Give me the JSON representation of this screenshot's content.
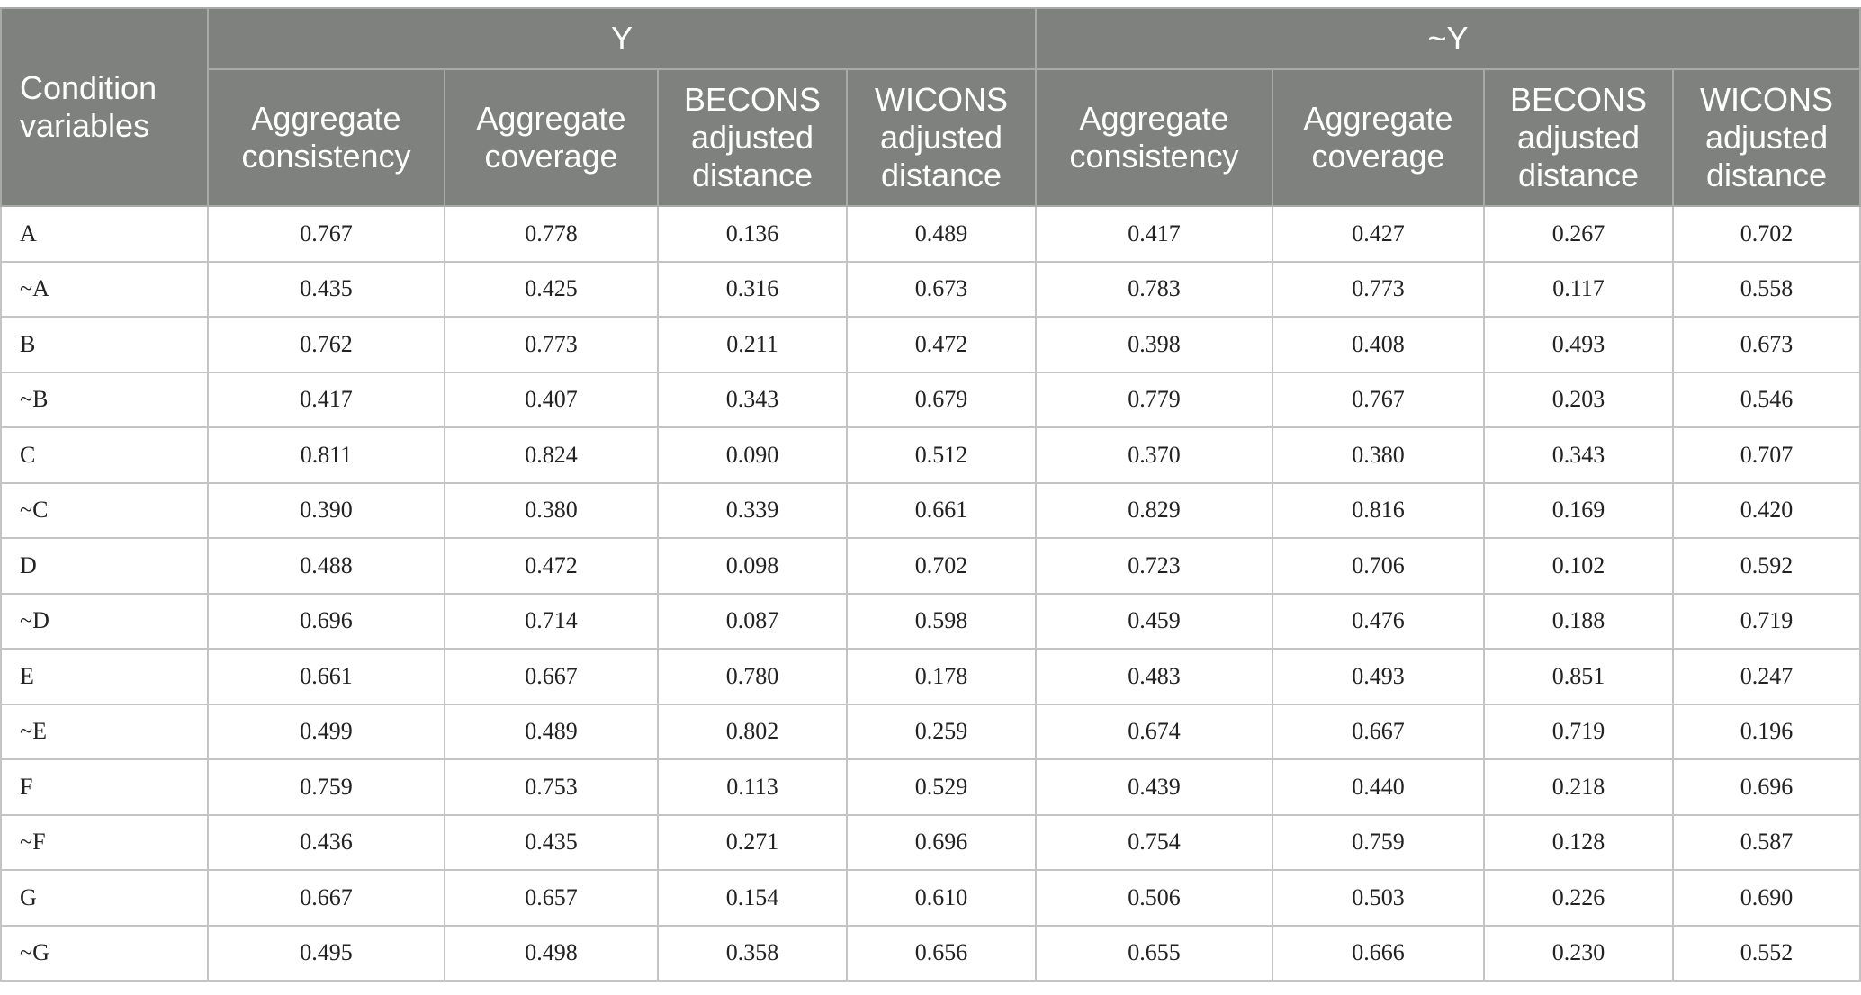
{
  "table": {
    "corner_header": [
      "Condition",
      "variables"
    ],
    "groups": [
      {
        "label": "Y",
        "span": 4
      },
      {
        "label": "~Y",
        "span": 4
      }
    ],
    "subheaders": [
      [
        "Aggregate",
        "consistency"
      ],
      [
        "Aggregate",
        "coverage"
      ],
      [
        "BECONS",
        "adjusted",
        "distance"
      ],
      [
        "WICONS",
        "adjusted",
        "distance"
      ],
      [
        "Aggregate",
        "consistency"
      ],
      [
        "Aggregate",
        "coverage"
      ],
      [
        "BECONS",
        "adjusted",
        "distance"
      ],
      [
        "WICONS",
        "adjusted",
        "distance"
      ]
    ],
    "rows": [
      {
        "label": "A",
        "values": [
          "0.767",
          "0.778",
          "0.136",
          "0.489",
          "0.417",
          "0.427",
          "0.267",
          "0.702"
        ]
      },
      {
        "label": "~A",
        "values": [
          "0.435",
          "0.425",
          "0.316",
          "0.673",
          "0.783",
          "0.773",
          "0.117",
          "0.558"
        ]
      },
      {
        "label": "B",
        "values": [
          "0.762",
          "0.773",
          "0.211",
          "0.472",
          "0.398",
          "0.408",
          "0.493",
          "0.673"
        ]
      },
      {
        "label": "~B",
        "values": [
          "0.417",
          "0.407",
          "0.343",
          "0.679",
          "0.779",
          "0.767",
          "0.203",
          "0.546"
        ]
      },
      {
        "label": "C",
        "values": [
          "0.811",
          "0.824",
          "0.090",
          "0.512",
          "0.370",
          "0.380",
          "0.343",
          "0.707"
        ]
      },
      {
        "label": "~C",
        "values": [
          "0.390",
          "0.380",
          "0.339",
          "0.661",
          "0.829",
          "0.816",
          "0.169",
          "0.420"
        ]
      },
      {
        "label": "D",
        "values": [
          "0.488",
          "0.472",
          "0.098",
          "0.702",
          "0.723",
          "0.706",
          "0.102",
          "0.592"
        ]
      },
      {
        "label": "~D",
        "values": [
          "0.696",
          "0.714",
          "0.087",
          "0.598",
          "0.459",
          "0.476",
          "0.188",
          "0.719"
        ]
      },
      {
        "label": "E",
        "values": [
          "0.661",
          "0.667",
          "0.780",
          "0.178",
          "0.483",
          "0.493",
          "0.851",
          "0.247"
        ]
      },
      {
        "label": "~E",
        "values": [
          "0.499",
          "0.489",
          "0.802",
          "0.259",
          "0.674",
          "0.667",
          "0.719",
          "0.196"
        ]
      },
      {
        "label": "F",
        "values": [
          "0.759",
          "0.753",
          "0.113",
          "0.529",
          "0.439",
          "0.440",
          "0.218",
          "0.696"
        ]
      },
      {
        "label": "~F",
        "values": [
          "0.436",
          "0.435",
          "0.271",
          "0.696",
          "0.754",
          "0.759",
          "0.128",
          "0.587"
        ]
      },
      {
        "label": "G",
        "values": [
          "0.667",
          "0.657",
          "0.154",
          "0.610",
          "0.506",
          "0.503",
          "0.226",
          "0.690"
        ]
      },
      {
        "label": "~G",
        "values": [
          "0.495",
          "0.498",
          "0.358",
          "0.656",
          "0.655",
          "0.666",
          "0.230",
          "0.552"
        ]
      }
    ]
  },
  "colors": {
    "header_background": "#7f817f",
    "header_text": "#ffffff",
    "cell_border": "#c4c4c4"
  }
}
